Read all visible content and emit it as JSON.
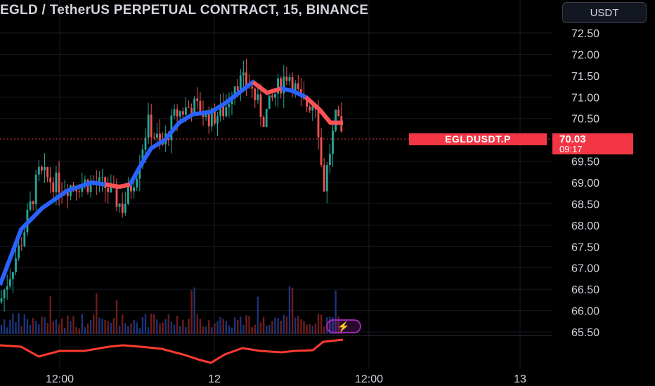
{
  "header": {
    "title": "EGLD / TetherUS PERPETUAL CONTRACT, 15, BINANCE",
    "currency_button": "USDT"
  },
  "price_tag": {
    "ticker": "EGLDUSDT.P",
    "price": "70.03",
    "countdown": "09:17"
  },
  "price_axis": [
    "72.50",
    "72.00",
    "71.50",
    "71.00",
    "70.50",
    "69.50",
    "69.00",
    "68.50",
    "68.00",
    "67.50",
    "67.00",
    "66.50",
    "66.00",
    "65.50"
  ],
  "time_axis": [
    "12:00",
    "12",
    "12:00",
    "13"
  ],
  "colors": {
    "up": "#26a69a",
    "down": "#ef5350",
    "ma_up": "#2962ff",
    "ma_down": "#ff5252",
    "background": "#000000",
    "accent": "#f23645"
  },
  "icons": {
    "indicator": "lightning-bolt-icon"
  }
}
